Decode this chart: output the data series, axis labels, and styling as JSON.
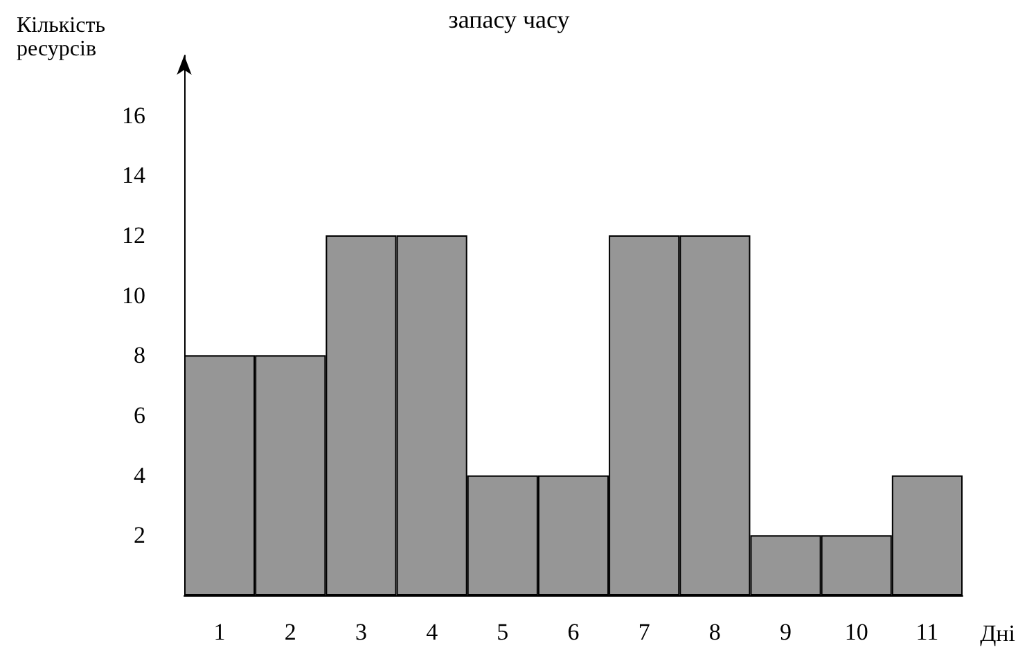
{
  "chart_data": {
    "type": "bar",
    "title": "запасу часу",
    "xlabel": "Дні",
    "ylabel": "Кількість ресурсів",
    "categories": [
      "1",
      "2",
      "3",
      "4",
      "5",
      "6",
      "7",
      "8",
      "9",
      "10",
      "11"
    ],
    "values": [
      8,
      8,
      12,
      12,
      4,
      4,
      12,
      12,
      2,
      2,
      4
    ],
    "color": "#969696",
    "ylim": [
      0,
      18
    ],
    "yticks": [
      2,
      4,
      6,
      8,
      10,
      12,
      14,
      16
    ],
    "grid": false
  }
}
